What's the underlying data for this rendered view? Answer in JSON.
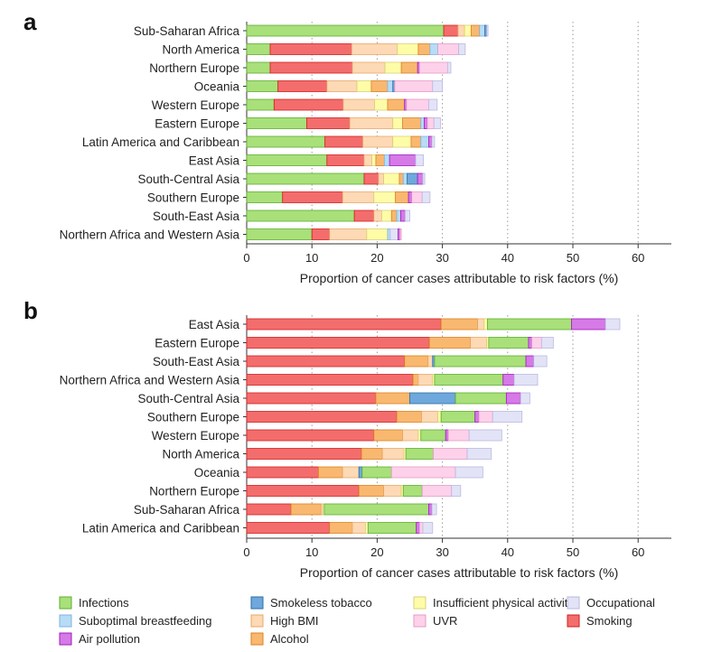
{
  "panels": [
    {
      "letter": "a"
    },
    {
      "letter": "b"
    }
  ],
  "legend": [
    {
      "key": "infections",
      "label": "Infections",
      "color": "#a9e07a",
      "stroke": "#5cae2e"
    },
    {
      "key": "smokeless",
      "label": "Smokeless tobacco",
      "color": "#6fa8dc",
      "stroke": "#2e6da4"
    },
    {
      "key": "physical",
      "label": "Insufficient physical activity",
      "color": "#fffca8",
      "stroke": "#d8d27a"
    },
    {
      "key": "occupational",
      "label": "Occupational",
      "color": "#e3e3f7",
      "stroke": "#b9b9e0"
    },
    {
      "key": "breastfeeding",
      "label": "Suboptimal breastfeeding",
      "color": "#b7dcf7",
      "stroke": "#7fb3dc"
    },
    {
      "key": "bmi",
      "label": "High BMI",
      "color": "#fdd9b5",
      "stroke": "#e8a86a"
    },
    {
      "key": "uvr",
      "label": "UVR",
      "color": "#fdd1ea",
      "stroke": "#e59bc6"
    },
    {
      "key": "smoking",
      "label": "Smoking",
      "color": "#f36d6d",
      "stroke": "#d11f1f"
    },
    {
      "key": "air",
      "label": "Air pollution",
      "color": "#d57ae6",
      "stroke": "#a01bbf"
    },
    {
      "key": "alcohol",
      "label": "Alcohol",
      "color": "#f9b870",
      "stroke": "#d9821f"
    }
  ],
  "chart_data": [
    {
      "type": "bar",
      "orientation": "horizontal",
      "stacked": true,
      "panel": "a",
      "xlabel": "Proportion of cancer cases attributable to risk factors (%)",
      "xlim": [
        0,
        65
      ],
      "xticks": [
        "0",
        "10",
        "20",
        "30",
        "40",
        "50",
        "60"
      ],
      "grid": "vertical dotted",
      "categories": [
        "Sub-Saharan Africa",
        "North America",
        "Northern Europe",
        "Oceania",
        "Western Europe",
        "Eastern Europe",
        "Latin America and Caribbean",
        "East Asia",
        "South-Central Asia",
        "Southern Europe",
        "South-East Asia",
        "Northern Africa and Western Asia"
      ],
      "rows": [
        [
          [
            "infections",
            30.2
          ],
          [
            "smoking",
            2.2
          ],
          [
            "bmi",
            1.0
          ],
          [
            "physical",
            1.0
          ],
          [
            "alcohol",
            1.3
          ],
          [
            "breastfeeding",
            0.8
          ],
          [
            "smokeless",
            0.3
          ],
          [
            "occupational",
            0.2
          ]
        ],
        [
          [
            "infections",
            3.6
          ],
          [
            "smoking",
            12.5
          ],
          [
            "bmi",
            7.0
          ],
          [
            "physical",
            3.2
          ],
          [
            "alcohol",
            1.8
          ],
          [
            "breastfeeding",
            1.2
          ],
          [
            "uvr",
            3.2
          ],
          [
            "occupational",
            1.0
          ]
        ],
        [
          [
            "infections",
            3.6
          ],
          [
            "smoking",
            12.6
          ],
          [
            "bmi",
            5.0
          ],
          [
            "physical",
            2.5
          ],
          [
            "alcohol",
            2.5
          ],
          [
            "air",
            0.3
          ],
          [
            "uvr",
            4.3
          ],
          [
            "occupational",
            0.5
          ]
        ],
        [
          [
            "infections",
            4.8
          ],
          [
            "smoking",
            7.5
          ],
          [
            "bmi",
            4.6
          ],
          [
            "physical",
            2.2
          ],
          [
            "alcohol",
            2.5
          ],
          [
            "breastfeeding",
            0.8
          ],
          [
            "smokeless",
            0.3
          ],
          [
            "uvr",
            5.8
          ],
          [
            "occupational",
            1.5
          ]
        ],
        [
          [
            "infections",
            4.2
          ],
          [
            "smoking",
            10.6
          ],
          [
            "bmi",
            4.8
          ],
          [
            "physical",
            2.0
          ],
          [
            "alcohol",
            2.6
          ],
          [
            "air",
            0.3
          ],
          [
            "uvr",
            3.4
          ],
          [
            "occupational",
            1.3
          ]
        ],
        [
          [
            "infections",
            9.2
          ],
          [
            "smoking",
            6.6
          ],
          [
            "bmi",
            6.6
          ],
          [
            "physical",
            1.5
          ],
          [
            "alcohol",
            2.8
          ],
          [
            "breastfeeding",
            0.5
          ],
          [
            "air",
            0.5
          ],
          [
            "uvr",
            1.0
          ],
          [
            "occupational",
            1.0
          ]
        ],
        [
          [
            "infections",
            12.0
          ],
          [
            "smoking",
            5.8
          ],
          [
            "bmi",
            4.6
          ],
          [
            "physical",
            2.8
          ],
          [
            "alcohol",
            1.5
          ],
          [
            "breastfeeding",
            1.2
          ],
          [
            "air",
            0.5
          ],
          [
            "occupational",
            0.4
          ]
        ],
        [
          [
            "infections",
            12.3
          ],
          [
            "smoking",
            5.7
          ],
          [
            "bmi",
            1.2
          ],
          [
            "physical",
            0.6
          ],
          [
            "alcohol",
            1.3
          ],
          [
            "breastfeeding",
            0.8
          ],
          [
            "air",
            4.0
          ],
          [
            "occupational",
            1.2
          ]
        ],
        [
          [
            "infections",
            18.0
          ],
          [
            "smoking",
            2.2
          ],
          [
            "bmi",
            0.8
          ],
          [
            "physical",
            2.4
          ],
          [
            "alcohol",
            0.6
          ],
          [
            "breastfeeding",
            0.6
          ],
          [
            "smokeless",
            1.6
          ],
          [
            "air",
            0.8
          ],
          [
            "occupational",
            0.3
          ]
        ],
        [
          [
            "infections",
            5.5
          ],
          [
            "smoking",
            9.2
          ],
          [
            "bmi",
            4.8
          ],
          [
            "physical",
            3.3
          ],
          [
            "alcohol",
            2.0
          ],
          [
            "air",
            0.5
          ],
          [
            "uvr",
            1.6
          ],
          [
            "occupational",
            1.2
          ]
        ],
        [
          [
            "infections",
            16.5
          ],
          [
            "smoking",
            3.0
          ],
          [
            "bmi",
            1.2
          ],
          [
            "physical",
            1.5
          ],
          [
            "alcohol",
            0.8
          ],
          [
            "breastfeeding",
            0.6
          ],
          [
            "air",
            0.7
          ],
          [
            "occupational",
            0.7
          ]
        ],
        [
          [
            "infections",
            10.0
          ],
          [
            "smoking",
            2.7
          ],
          [
            "bmi",
            5.7
          ],
          [
            "physical",
            3.2
          ],
          [
            "breastfeeding",
            0.4
          ],
          [
            "occupational",
            1.2
          ],
          [
            "air",
            0.3
          ],
          [
            "uvr",
            0.2
          ]
        ]
      ]
    },
    {
      "type": "bar",
      "orientation": "horizontal",
      "stacked": true,
      "panel": "b",
      "xlabel": "Proportion of cancer cases attributable to risk factors (%)",
      "xlim": [
        0,
        65
      ],
      "xticks": [
        "0",
        "10",
        "20",
        "30",
        "40",
        "50",
        "60"
      ],
      "grid": "vertical dotted",
      "categories": [
        "East Asia",
        "Eastern Europe",
        "South-East Asia",
        "Northern Africa and Western Asia",
        "South-Central Asia",
        "Southern Europe",
        "Western Europe",
        "North America",
        "Oceania",
        "Northern Europe",
        "Sub-Saharan Africa",
        "Latin America and Caribbean"
      ],
      "rows": [
        [
          [
            "smoking",
            29.8
          ],
          [
            "alcohol",
            5.6
          ],
          [
            "bmi",
            1.0
          ],
          [
            "physical",
            0.5
          ],
          [
            "infections",
            12.9
          ],
          [
            "air",
            5.2
          ],
          [
            "occupational",
            2.2
          ]
        ],
        [
          [
            "smoking",
            28.0
          ],
          [
            "alcohol",
            6.3
          ],
          [
            "bmi",
            2.5
          ],
          [
            "physical",
            0.3
          ],
          [
            "infections",
            6.1
          ],
          [
            "air",
            0.5
          ],
          [
            "uvr",
            1.5
          ],
          [
            "occupational",
            1.8
          ]
        ],
        [
          [
            "smoking",
            24.2
          ],
          [
            "alcohol",
            3.6
          ],
          [
            "bmi",
            0.7
          ],
          [
            "smokeless",
            0.3
          ],
          [
            "infections",
            14.0
          ],
          [
            "air",
            1.2
          ],
          [
            "occupational",
            2.0
          ]
        ],
        [
          [
            "smoking",
            25.5
          ],
          [
            "alcohol",
            0.8
          ],
          [
            "bmi",
            2.2
          ],
          [
            "physical",
            0.3
          ],
          [
            "infections",
            10.5
          ],
          [
            "air",
            1.7
          ],
          [
            "occupational",
            3.6
          ]
        ],
        [
          [
            "smoking",
            19.8
          ],
          [
            "alcohol",
            5.2
          ],
          [
            "smokeless",
            7.0
          ],
          [
            "infections",
            7.8
          ],
          [
            "air",
            2.2
          ],
          [
            "occupational",
            1.4
          ]
        ],
        [
          [
            "smoking",
            23.0
          ],
          [
            "alcohol",
            3.8
          ],
          [
            "bmi",
            2.5
          ],
          [
            "physical",
            0.5
          ],
          [
            "infections",
            5.2
          ],
          [
            "air",
            0.6
          ],
          [
            "uvr",
            2.1
          ],
          [
            "occupational",
            4.5
          ]
        ],
        [
          [
            "smoking",
            19.5
          ],
          [
            "alcohol",
            4.4
          ],
          [
            "bmi",
            2.4
          ],
          [
            "physical",
            0.4
          ],
          [
            "infections",
            3.8
          ],
          [
            "air",
            0.4
          ],
          [
            "uvr",
            3.2
          ],
          [
            "occupational",
            5.0
          ]
        ],
        [
          [
            "smoking",
            17.6
          ],
          [
            "alcohol",
            3.2
          ],
          [
            "bmi",
            3.3
          ],
          [
            "physical",
            0.3
          ],
          [
            "infections",
            4.2
          ],
          [
            "uvr",
            5.2
          ],
          [
            "occupational",
            3.7
          ]
        ],
        [
          [
            "smoking",
            11.0
          ],
          [
            "alcohol",
            3.7
          ],
          [
            "bmi",
            2.5
          ],
          [
            "smokeless",
            0.5
          ],
          [
            "infections",
            4.5
          ],
          [
            "uvr",
            9.8
          ],
          [
            "occupational",
            4.2
          ]
        ],
        [
          [
            "smoking",
            17.2
          ],
          [
            "alcohol",
            3.8
          ],
          [
            "bmi",
            2.7
          ],
          [
            "physical",
            0.3
          ],
          [
            "infections",
            2.9
          ],
          [
            "uvr",
            4.5
          ],
          [
            "occupational",
            1.4
          ]
        ],
        [
          [
            "smoking",
            6.8
          ],
          [
            "alcohol",
            4.6
          ],
          [
            "bmi",
            0.3
          ],
          [
            "physical",
            0.2
          ],
          [
            "infections",
            16.0
          ],
          [
            "air",
            0.5
          ],
          [
            "occupational",
            0.7
          ]
        ],
        [
          [
            "smoking",
            12.7
          ],
          [
            "alcohol",
            3.5
          ],
          [
            "bmi",
            2.0
          ],
          [
            "physical",
            0.4
          ],
          [
            "infections",
            7.4
          ],
          [
            "air",
            0.5
          ],
          [
            "uvr",
            0.5
          ],
          [
            "occupational",
            1.5
          ]
        ]
      ]
    }
  ]
}
